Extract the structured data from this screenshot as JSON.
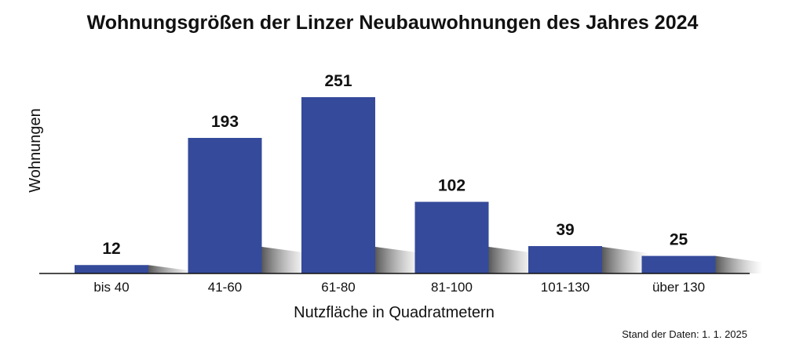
{
  "chart_data": {
    "type": "bar",
    "title": "Wohnungsgrößen der Linzer Neubauwohnungen des Jahres 2024",
    "xlabel": "Nutzfläche in Quadratmetern",
    "ylabel": "Wohnungen",
    "categories": [
      "bis 40",
      "41-60",
      "61-80",
      "81-100",
      "101-130",
      "über 130"
    ],
    "values": [
      12,
      193,
      251,
      102,
      39,
      25
    ],
    "ylim": [
      0,
      251
    ],
    "grid": false,
    "legend": "none",
    "bar_color": "#354a9a",
    "shadow_color": "#888888",
    "source_note": "Stand der Daten: 1. 1. 2025"
  }
}
